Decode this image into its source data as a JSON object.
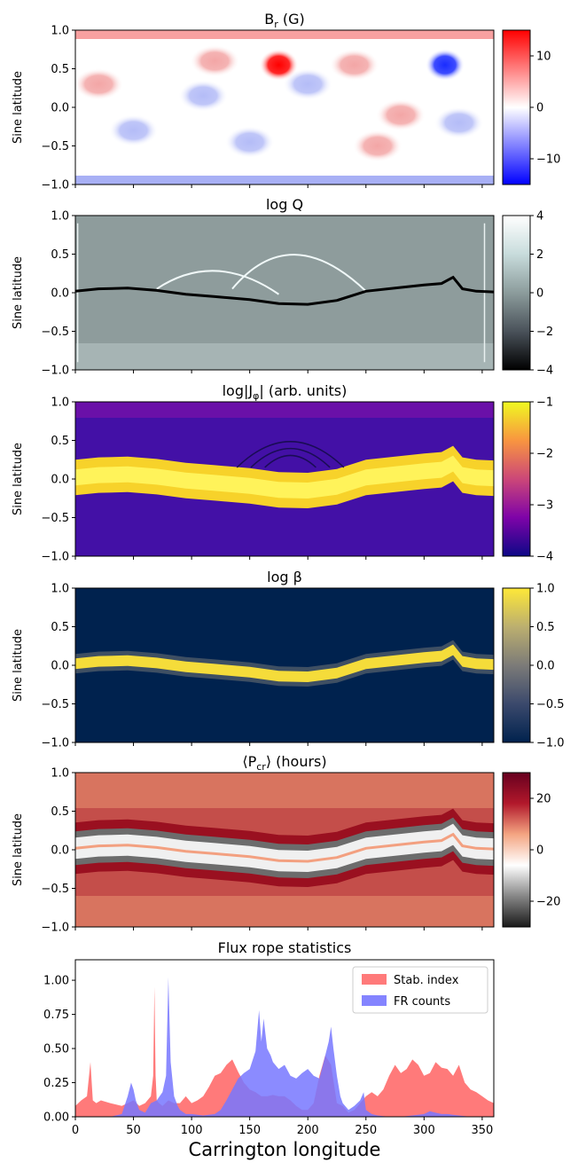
{
  "chart_data": [
    {
      "type": "heatmap",
      "title_main": "B",
      "title_sub": "r",
      "title_rest": " (G)",
      "ylabel": "Sine latitude",
      "ylim": [
        -1.0,
        1.0
      ],
      "xlim": [
        0,
        360
      ],
      "yticks": [
        "1.0",
        "0.5",
        "0.0",
        "−0.5",
        "−1.0"
      ],
      "colorbar": {
        "range": [
          -15,
          15
        ],
        "ticks": [
          "10",
          "0",
          "−10"
        ],
        "tick_values": [
          10,
          0,
          -10
        ],
        "colors": [
          "#0000ff",
          "#ffffff",
          "#ff0000"
        ]
      },
      "features": [
        {
          "name": "positive spot",
          "lon": 175,
          "sinlat": 0.55,
          "value": 15
        },
        {
          "name": "negative spot",
          "lon": 318,
          "sinlat": 0.55,
          "value": -13
        }
      ]
    },
    {
      "type": "heatmap",
      "title_main": "log ",
      "title_sub": "",
      "title_rest": "Q",
      "ylabel": "Sine latitude",
      "ylim": [
        -1.0,
        1.0
      ],
      "xlim": [
        0,
        360
      ],
      "yticks": [
        "1.0",
        "0.5",
        "0.0",
        "−0.5",
        "−1.0"
      ],
      "colorbar": {
        "range": [
          -4,
          4
        ],
        "ticks": [
          "4",
          "2",
          "0",
          "−2",
          "−4"
        ],
        "tick_values": [
          4,
          2,
          0,
          -2,
          -4
        ],
        "colors": [
          "#000000",
          "#4a525a",
          "#8c9c9c",
          "#c8dcdc",
          "#ffffff"
        ]
      },
      "neutral_line": [
        [
          0,
          0.02
        ],
        [
          20,
          0.05
        ],
        [
          45,
          0.06
        ],
        [
          70,
          0.03
        ],
        [
          95,
          -0.02
        ],
        [
          120,
          -0.05
        ],
        [
          150,
          -0.09
        ],
        [
          175,
          -0.14
        ],
        [
          200,
          -0.15
        ],
        [
          225,
          -0.1
        ],
        [
          250,
          0.02
        ],
        [
          275,
          0.06
        ],
        [
          300,
          0.1
        ],
        [
          315,
          0.12
        ],
        [
          325,
          0.2
        ],
        [
          333,
          0.05
        ],
        [
          345,
          0.02
        ],
        [
          360,
          0.01
        ]
      ]
    },
    {
      "type": "heatmap",
      "title_main": "log|J",
      "title_sub": "φ",
      "title_rest": "| (arb. units)",
      "ylabel": "Sine latitude",
      "ylim": [
        -1.0,
        1.0
      ],
      "xlim": [
        0,
        360
      ],
      "yticks": [
        "1.0",
        "0.5",
        "0.0",
        "−0.5",
        "−1.0"
      ],
      "colorbar": {
        "range": [
          -4,
          -1
        ],
        "ticks": [
          "−1",
          "−2",
          "−3",
          "−4"
        ],
        "tick_values": [
          -1,
          -2,
          -3,
          -4
        ],
        "colors": [
          "#0d0887",
          "#7e03a8",
          "#cc4778",
          "#f89540",
          "#f0f921"
        ]
      }
    },
    {
      "type": "heatmap",
      "title_main": "log ",
      "title_sub": "",
      "title_rest": "β",
      "ylabel": "Sine latitude",
      "ylim": [
        -1.0,
        1.0
      ],
      "xlim": [
        0,
        360
      ],
      "yticks": [
        "1.0",
        "0.5",
        "0.0",
        "−0.5",
        "−1.0"
      ],
      "colorbar": {
        "range": [
          -1,
          1
        ],
        "ticks": [
          "1.0",
          "0.5",
          "0.0",
          "−0.5",
          "−1.0"
        ],
        "tick_values": [
          1,
          0.5,
          0,
          -0.5,
          -1
        ],
        "colors": [
          "#00224e",
          "#3b496c",
          "#7c7b78",
          "#bcaf6f",
          "#fee838"
        ]
      }
    },
    {
      "type": "heatmap",
      "title_main": "⟨P",
      "title_sub": "cr",
      "title_rest": "⟩ (hours)",
      "ylabel": "Sine latitude",
      "ylim": [
        -1.0,
        1.0
      ],
      "xlim": [
        0,
        360
      ],
      "yticks": [
        "1.0",
        "0.5",
        "0.0",
        "−0.5",
        "−1.0"
      ],
      "colorbar": {
        "range": [
          -30,
          30
        ],
        "ticks": [
          "20",
          "0",
          "−20"
        ],
        "tick_values": [
          20,
          0,
          -20
        ],
        "colors": [
          "#1a1a1a",
          "#878787",
          "#ffffff",
          "#f4a582",
          "#b2182b",
          "#67001f"
        ]
      }
    },
    {
      "type": "area",
      "title": "Flux rope statistics",
      "xlabel": "Carrington longitude",
      "xlim": [
        0,
        360
      ],
      "ylim": [
        0,
        1.15
      ],
      "xticks": [
        0,
        50,
        100,
        150,
        200,
        250,
        300,
        350
      ],
      "yticks": [
        "0.00",
        "0.25",
        "0.50",
        "0.75",
        "1.00"
      ],
      "ytick_values": [
        0,
        0.25,
        0.5,
        0.75,
        1.0
      ],
      "legend": "top-right",
      "series": [
        {
          "name": "Stab. index",
          "color": "#ff6b6b",
          "x": [
            0,
            5,
            10,
            13,
            15,
            18,
            22,
            30,
            40,
            45,
            50,
            55,
            60,
            65,
            67,
            68,
            69,
            70,
            72,
            75,
            80,
            85,
            90,
            95,
            100,
            105,
            110,
            115,
            120,
            125,
            130,
            135,
            140,
            145,
            150,
            155,
            160,
            165,
            170,
            175,
            180,
            185,
            190,
            195,
            200,
            205,
            210,
            215,
            220,
            225,
            230,
            235,
            240,
            245,
            250,
            255,
            260,
            265,
            270,
            275,
            280,
            285,
            290,
            295,
            300,
            305,
            310,
            315,
            320,
            325,
            330,
            335,
            340,
            345,
            350,
            355,
            360
          ],
          "values": [
            0.08,
            0.12,
            0.15,
            0.4,
            0.12,
            0.1,
            0.12,
            0.1,
            0.08,
            0.1,
            0.12,
            0.08,
            0.1,
            0.15,
            0.3,
            0.95,
            0.3,
            0.12,
            0.1,
            0.08,
            0.12,
            0.1,
            0.1,
            0.15,
            0.1,
            0.12,
            0.15,
            0.22,
            0.3,
            0.32,
            0.38,
            0.42,
            0.33,
            0.25,
            0.2,
            0.18,
            0.15,
            0.15,
            0.16,
            0.15,
            0.15,
            0.12,
            0.08,
            0.05,
            0.05,
            0.1,
            0.3,
            0.45,
            0.38,
            0.1,
            0.08,
            0.03,
            0.05,
            0.1,
            0.15,
            0.18,
            0.15,
            0.2,
            0.3,
            0.38,
            0.32,
            0.35,
            0.42,
            0.38,
            0.3,
            0.32,
            0.4,
            0.36,
            0.35,
            0.3,
            0.38,
            0.25,
            0.2,
            0.18,
            0.15,
            0.12,
            0.1
          ]
        },
        {
          "name": "FR counts",
          "color": "#7777ff",
          "x": [
            0,
            10,
            20,
            30,
            40,
            45,
            48,
            50,
            52,
            55,
            60,
            65,
            70,
            75,
            78,
            80,
            82,
            85,
            88,
            90,
            95,
            100,
            110,
            120,
            125,
            130,
            135,
            140,
            145,
            150,
            155,
            158,
            160,
            162,
            165,
            168,
            170,
            175,
            180,
            185,
            190,
            195,
            200,
            205,
            210,
            215,
            218,
            220,
            222,
            225,
            228,
            230,
            235,
            240,
            245,
            248,
            250,
            255,
            260,
            270,
            280,
            290,
            300,
            305,
            310,
            315,
            320,
            330,
            340,
            350,
            360
          ],
          "values": [
            0,
            0,
            0,
            0,
            0.02,
            0.15,
            0.25,
            0.2,
            0.12,
            0.05,
            0.03,
            0.1,
            0.12,
            0.18,
            0.3,
            1.02,
            0.4,
            0.15,
            0.08,
            0.05,
            0.02,
            0.02,
            0.01,
            0.02,
            0.05,
            0.12,
            0.2,
            0.28,
            0.32,
            0.35,
            0.48,
            0.78,
            0.55,
            0.72,
            0.5,
            0.45,
            0.4,
            0.35,
            0.38,
            0.3,
            0.28,
            0.32,
            0.35,
            0.3,
            0.28,
            0.45,
            0.55,
            0.66,
            0.5,
            0.3,
            0.15,
            0.1,
            0.05,
            0.08,
            0.12,
            0.18,
            0.05,
            0.02,
            0.01,
            0,
            0,
            0.01,
            0.02,
            0.04,
            0.03,
            0.02,
            0.02,
            0.01,
            0,
            0,
            0
          ]
        }
      ]
    }
  ]
}
